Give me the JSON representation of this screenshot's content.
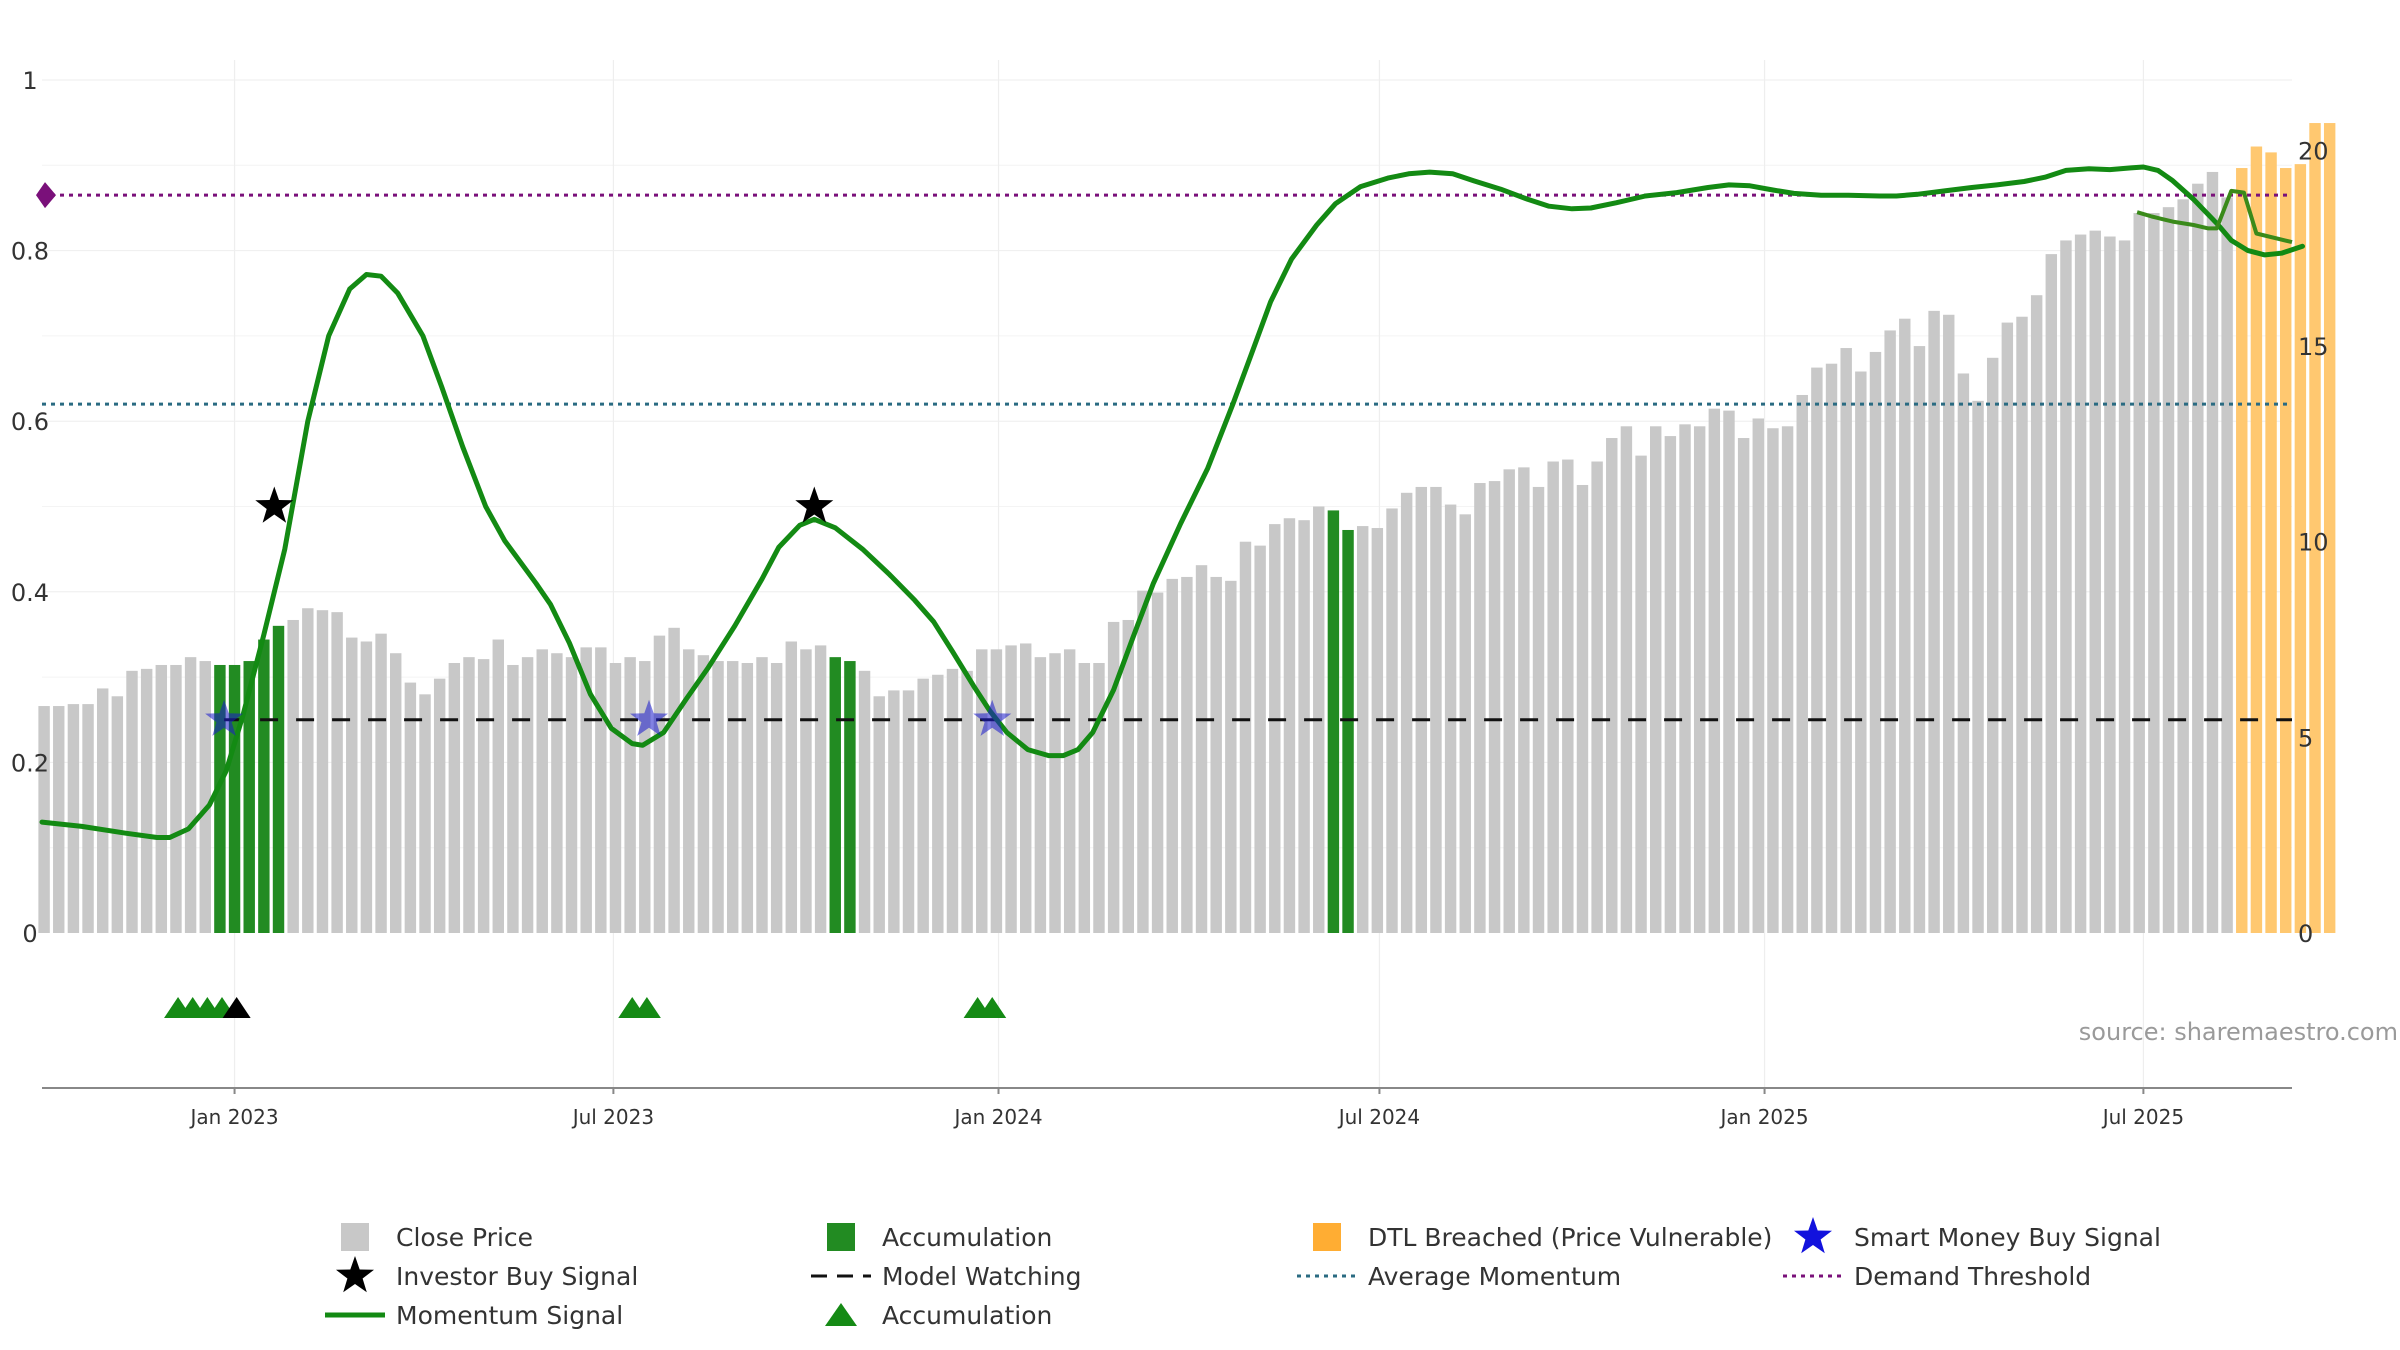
{
  "chart_data": {
    "type": "bar",
    "source_text": "source: sharemaestro.com",
    "left_axis": {
      "ticks": [
        0,
        0.2,
        0.4,
        0.6,
        0.8,
        1
      ],
      "labels": [
        "0",
        "0.2",
        "0.4",
        "0.6",
        "0.8",
        "1"
      ],
      "range": [
        0,
        1
      ]
    },
    "right_axis": {
      "ticks": [
        0,
        5,
        10,
        15,
        20
      ],
      "labels": [
        "0",
        "5",
        "10",
        "15",
        "20"
      ],
      "range": [
        0,
        21.8
      ]
    },
    "x_axis": {
      "range": [
        "2022-10-01",
        "2025-09-10"
      ],
      "ticks": [
        {
          "date": "2023-01-01",
          "label": "Jan 2023"
        },
        {
          "date": "2023-07-01",
          "label": "Jul 2023"
        },
        {
          "date": "2024-01-01",
          "label": "Jan 2024"
        },
        {
          "date": "2024-07-01",
          "label": "Jul 2024"
        },
        {
          "date": "2025-01-01",
          "label": "Jan 2025"
        },
        {
          "date": "2025-07-01",
          "label": "Jul 2025"
        }
      ]
    },
    "close_price": {
      "start_date": "2022-10-02",
      "interval_days": 7,
      "values": [
        5.8,
        5.8,
        5.85,
        5.85,
        6.25,
        6.05,
        6.7,
        6.75,
        6.85,
        6.85,
        7.05,
        6.95,
        6.85,
        6.85,
        6.95,
        7.5,
        7.85,
        8.0,
        8.3,
        8.25,
        8.2,
        7.55,
        7.45,
        7.65,
        7.15,
        6.4,
        6.1,
        6.5,
        6.9,
        7.05,
        7.0,
        7.5,
        6.85,
        7.05,
        7.25,
        7.15,
        7.05,
        7.3,
        7.3,
        6.9,
        7.05,
        6.95,
        7.6,
        7.8,
        7.25,
        7.1,
        6.95,
        6.95,
        6.9,
        7.05,
        6.9,
        7.45,
        7.25,
        7.35,
        7.05,
        6.95,
        6.7,
        6.05,
        6.2,
        6.2,
        6.5,
        6.6,
        6.75,
        6.7,
        7.25,
        7.25,
        7.35,
        7.4,
        7.05,
        7.15,
        7.25,
        6.9,
        6.9,
        7.95,
        8.0,
        8.75,
        8.7,
        9.05,
        9.1,
        9.4,
        9.1,
        9.0,
        10.0,
        9.9,
        10.45,
        10.6,
        10.55,
        10.9,
        10.8,
        10.3,
        10.4,
        10.35,
        10.85,
        11.25,
        11.4,
        11.4,
        10.95,
        10.7,
        11.5,
        11.55,
        11.85,
        11.9,
        11.4,
        12.05,
        12.1,
        11.45,
        12.05,
        12.65,
        12.95,
        12.2,
        12.95,
        12.7,
        13.0,
        12.95,
        13.4,
        13.35,
        12.65,
        13.15,
        12.9,
        12.95,
        13.75,
        14.45,
        14.55,
        14.95,
        14.35,
        14.85,
        15.4,
        15.7,
        15.0,
        15.9,
        15.8,
        14.3,
        13.6,
        14.7,
        15.6,
        15.75,
        16.3,
        17.35,
        17.7,
        17.85,
        17.95,
        17.8,
        17.7,
        18.4,
        18.4,
        18.55,
        18.75,
        19.15,
        19.45,
        18.8,
        19.55,
        20.1,
        19.95,
        19.55,
        19.65,
        20.7,
        20.7
      ],
      "accumulation_indices": [
        12,
        13,
        14,
        15,
        16,
        54,
        55,
        88,
        89
      ],
      "dtl_breached_from_index": 150
    },
    "momentum": {
      "points": [
        [
          "2022-10-01",
          0.13
        ],
        [
          "2022-10-20",
          0.125
        ],
        [
          "2022-11-10",
          0.117
        ],
        [
          "2022-11-25",
          0.112
        ],
        [
          "2022-12-01",
          0.112
        ],
        [
          "2022-12-10",
          0.122
        ],
        [
          "2022-12-20",
          0.15
        ],
        [
          "2022-12-28",
          0.19
        ],
        [
          "2023-01-05",
          0.255
        ],
        [
          "2023-01-15",
          0.35
        ],
        [
          "2023-01-25",
          0.45
        ],
        [
          "2023-02-05",
          0.6
        ],
        [
          "2023-02-15",
          0.7
        ],
        [
          "2023-02-25",
          0.755
        ],
        [
          "2023-03-05",
          0.772
        ],
        [
          "2023-03-12",
          0.77
        ],
        [
          "2023-03-20",
          0.75
        ],
        [
          "2023-04-01",
          0.7
        ],
        [
          "2023-04-10",
          0.64
        ],
        [
          "2023-04-20",
          0.57
        ],
        [
          "2023-05-01",
          0.5
        ],
        [
          "2023-05-10",
          0.46
        ],
        [
          "2023-05-25",
          0.41
        ],
        [
          "2023-06-01",
          0.385
        ],
        [
          "2023-06-10",
          0.34
        ],
        [
          "2023-06-20",
          0.28
        ],
        [
          "2023-06-30",
          0.24
        ],
        [
          "2023-07-10",
          0.222
        ],
        [
          "2023-07-15",
          0.22
        ],
        [
          "2023-07-25",
          0.235
        ],
        [
          "2023-08-05",
          0.275
        ],
        [
          "2023-08-15",
          0.31
        ],
        [
          "2023-08-28",
          0.36
        ],
        [
          "2023-09-10",
          0.415
        ],
        [
          "2023-09-18",
          0.452
        ],
        [
          "2023-09-28",
          0.478
        ],
        [
          "2023-10-05",
          0.485
        ],
        [
          "2023-10-15",
          0.475
        ],
        [
          "2023-10-28",
          0.45
        ],
        [
          "2023-11-10",
          0.42
        ],
        [
          "2023-11-22",
          0.39
        ],
        [
          "2023-12-01",
          0.365
        ],
        [
          "2023-12-10",
          0.33
        ],
        [
          "2023-12-20",
          0.29
        ],
        [
          "2023-12-28",
          0.26
        ],
        [
          "2024-01-05",
          0.235
        ],
        [
          "2024-01-15",
          0.215
        ],
        [
          "2024-01-25",
          0.208
        ],
        [
          "2024-02-01",
          0.208
        ],
        [
          "2024-02-08",
          0.215
        ],
        [
          "2024-02-15",
          0.235
        ],
        [
          "2024-02-25",
          0.285
        ],
        [
          "2024-03-05",
          0.345
        ],
        [
          "2024-03-15",
          0.41
        ],
        [
          "2024-03-28",
          0.48
        ],
        [
          "2024-04-10",
          0.545
        ],
        [
          "2024-04-22",
          0.62
        ],
        [
          "2024-05-01",
          0.68
        ],
        [
          "2024-05-10",
          0.74
        ],
        [
          "2024-05-20",
          0.79
        ],
        [
          "2024-06-01",
          0.83
        ],
        [
          "2024-06-10",
          0.855
        ],
        [
          "2024-06-22",
          0.875
        ],
        [
          "2024-07-05",
          0.885
        ],
        [
          "2024-07-15",
          0.89
        ],
        [
          "2024-07-25",
          0.892
        ],
        [
          "2024-08-05",
          0.89
        ],
        [
          "2024-08-15",
          0.882
        ],
        [
          "2024-08-28",
          0.872
        ],
        [
          "2024-09-10",
          0.86
        ],
        [
          "2024-09-20",
          0.852
        ],
        [
          "2024-10-01",
          0.849
        ],
        [
          "2024-10-10",
          0.85
        ],
        [
          "2024-10-22",
          0.856
        ],
        [
          "2024-11-05",
          0.864
        ],
        [
          "2024-11-20",
          0.868
        ],
        [
          "2024-12-05",
          0.874
        ],
        [
          "2024-12-15",
          0.877
        ],
        [
          "2024-12-25",
          0.876
        ],
        [
          "2025-01-05",
          0.871
        ],
        [
          "2025-01-15",
          0.867
        ],
        [
          "2025-01-28",
          0.865
        ],
        [
          "2025-02-10",
          0.865
        ],
        [
          "2025-02-25",
          0.864
        ],
        [
          "2025-03-05",
          0.864
        ],
        [
          "2025-03-15",
          0.866
        ],
        [
          "2025-03-28",
          0.87
        ],
        [
          "2025-04-10",
          0.874
        ],
        [
          "2025-04-22",
          0.877
        ],
        [
          "2025-05-05",
          0.881
        ],
        [
          "2025-05-15",
          0.886
        ],
        [
          "2025-05-25",
          0.894
        ],
        [
          "2025-06-05",
          0.896
        ],
        [
          "2025-06-15",
          0.895
        ],
        [
          "2025-06-25",
          0.897
        ],
        [
          "2025-07-01",
          0.898
        ],
        [
          "2025-07-08",
          0.894
        ],
        [
          "2025-07-15",
          0.882
        ],
        [
          "2025-07-25",
          0.86
        ],
        [
          "2025-08-05",
          0.832
        ],
        [
          "2025-08-12",
          0.812
        ],
        [
          "2025-08-20",
          0.8
        ],
        [
          "2025-08-28",
          0.795
        ],
        [
          "2025-09-05",
          0.797
        ],
        [
          "2025-09-15",
          0.805
        ]
      ],
      "dtl_points": [
        [
          "2025-06-28",
          0.845
        ],
        [
          "2025-07-05",
          0.84
        ],
        [
          "2025-07-15",
          0.834
        ],
        [
          "2025-07-25",
          0.83
        ],
        [
          "2025-08-01",
          0.826
        ],
        [
          "2025-08-05",
          0.826
        ],
        [
          "2025-08-12",
          0.87
        ],
        [
          "2025-08-18",
          0.868
        ],
        [
          "2025-08-24",
          0.82
        ],
        [
          "2025-09-10",
          0.81
        ]
      ]
    },
    "average_momentum": 0.62,
    "demand_threshold": 0.865,
    "model_watching_level": 0.25,
    "investor_buy_signals": [
      [
        "2023-01-20",
        0.5
      ],
      [
        "2023-10-05",
        0.5
      ]
    ],
    "smart_money_buy_signals": [
      [
        "2022-12-27",
        0.25
      ],
      [
        "2023-07-18",
        0.25
      ],
      [
        "2023-12-29",
        0.25
      ]
    ],
    "accumulation_markers": [
      "2022-12-05",
      "2022-12-12",
      "2022-12-19",
      "2022-12-26",
      "2023-07-10",
      "2023-07-17",
      "2023-12-22",
      "2023-12-29"
    ],
    "investor_marker_row": [
      "2023-01-02"
    ],
    "legend": [
      {
        "label": "Close Price",
        "icon": "grey-square"
      },
      {
        "label": "Investor Buy Signal",
        "icon": "black-star"
      },
      {
        "label": "Momentum Signal",
        "icon": "green-line"
      },
      {
        "label": "Accumulation",
        "icon": "green-square"
      },
      {
        "label": "Model Watching",
        "icon": "dashed-black-line"
      },
      {
        "label": "Accumulation",
        "icon": "green-triangle"
      },
      {
        "label": "DTL Breached (Price Vulnerable)",
        "icon": "orange-square"
      },
      {
        "label": "Average Momentum",
        "icon": "dotted-teal-line"
      },
      {
        "label": "Smart Money Buy Signal",
        "icon": "blue-star"
      },
      {
        "label": "Demand Threshold",
        "icon": "dotted-purple-line"
      }
    ],
    "colors": {
      "close_price": "#c8c8c8",
      "accumulation": "#228b22",
      "dtl_breached": "#ffc870",
      "momentum": "#138a13",
      "average_momentum": "#2a6b82",
      "demand_threshold": "#7a107a",
      "model_watching": "#111111",
      "smart_money": "#1a1acc",
      "investor": "#000000",
      "triangle": "#158a15"
    }
  }
}
